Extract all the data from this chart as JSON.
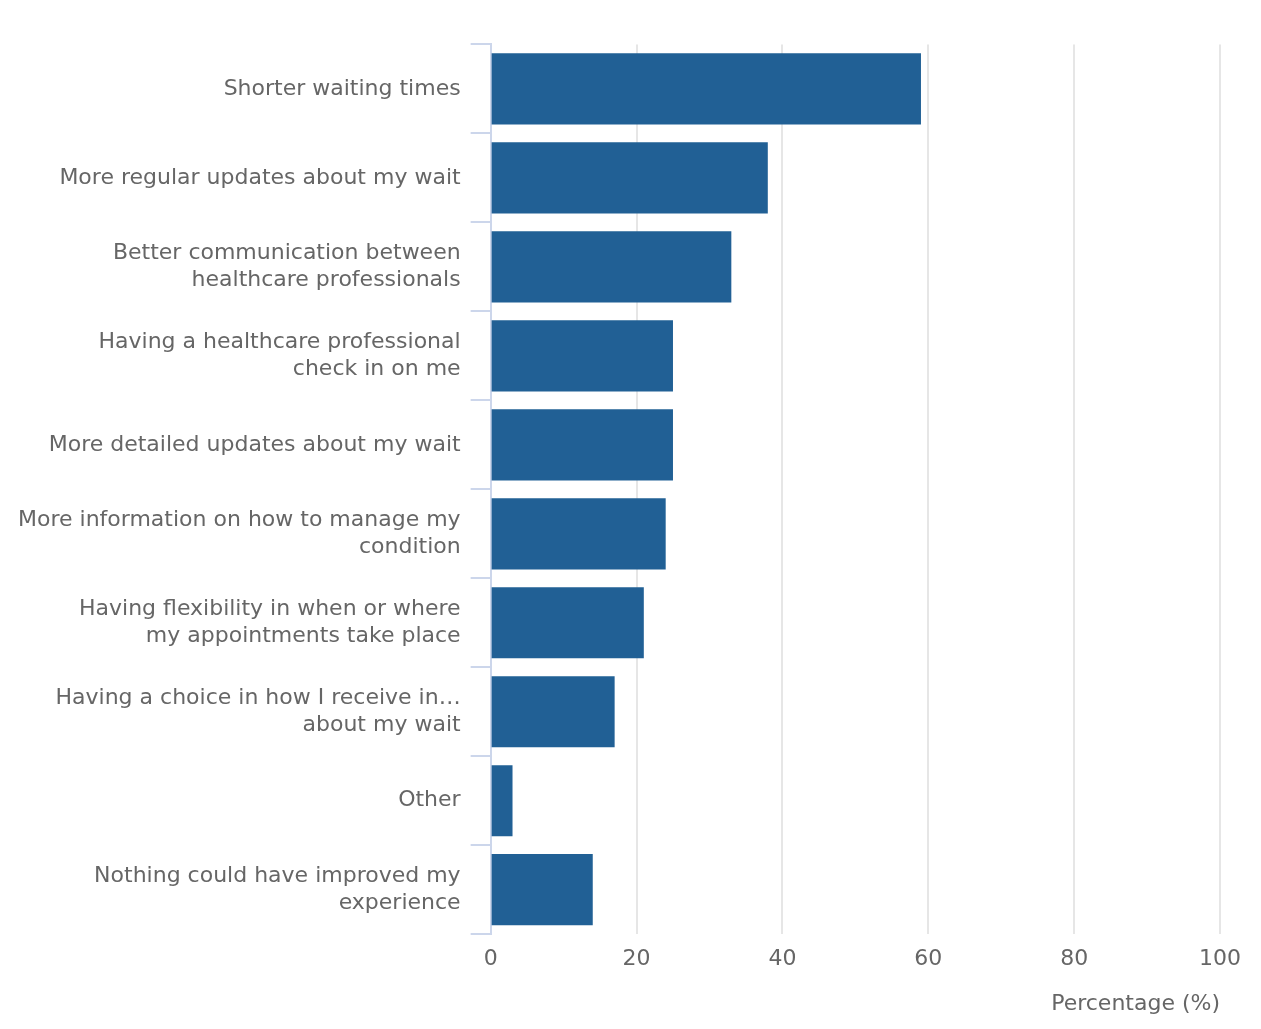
{
  "chart_data": {
    "type": "bar",
    "orientation": "horizontal",
    "xlabel": "Percentage (%)",
    "categories": [
      "Shorter waiting times",
      "More regular updates about my wait",
      "Better communication between healthcare professionals",
      "Having a healthcare professional check in on me",
      "More detailed updates about my wait",
      "More information on how to manage my condition",
      "Having flexibility in when or where my appointments take place",
      "Having a choice in how I receive in… about my wait",
      "Other",
      "Nothing could have improved my experience"
    ],
    "values": [
      59,
      38,
      33,
      25,
      25,
      24,
      21,
      17,
      3,
      14
    ],
    "color": "#216095",
    "xlim": [
      0,
      100
    ],
    "xticks": [
      0,
      20,
      40,
      60,
      80,
      100
    ],
    "grid": "x",
    "legend": false
  }
}
